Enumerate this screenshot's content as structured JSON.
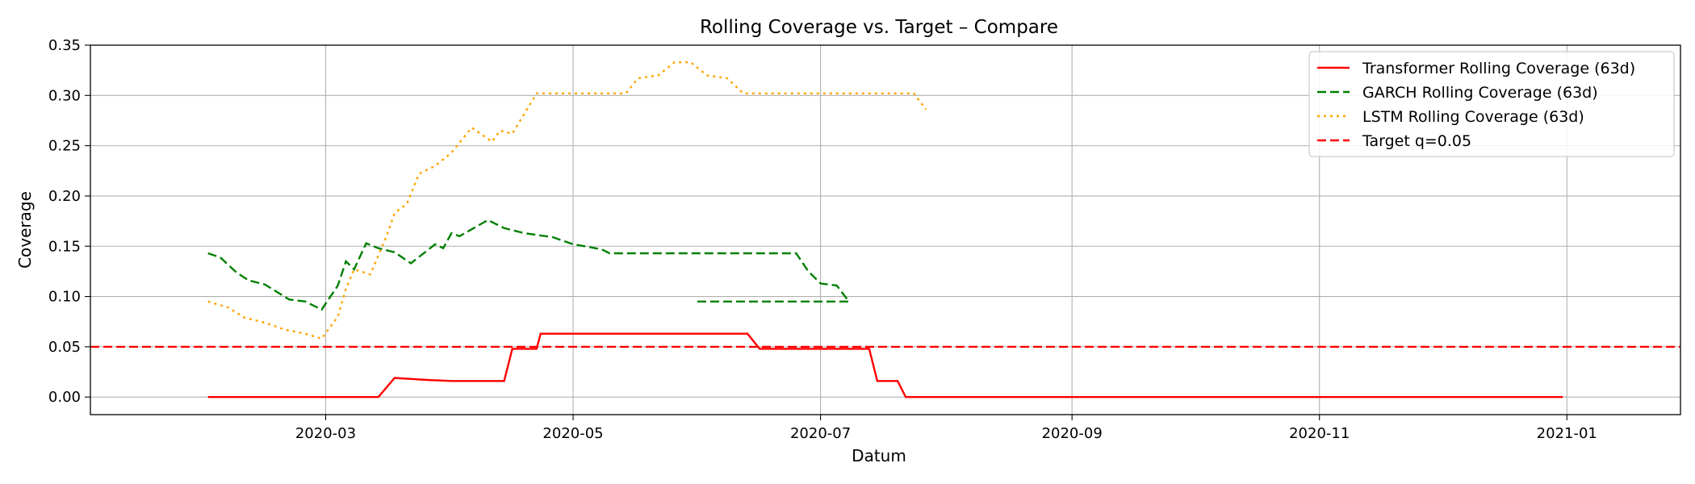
{
  "chart_data": {
    "type": "line",
    "title": "Rolling Coverage vs. Target – Compare",
    "xlabel": "Datum",
    "ylabel": "Coverage",
    "x_range": [
      "2020-01-03",
      "2021-01-29"
    ],
    "ylim": [
      -0.0175,
      0.35
    ],
    "x_ticks": [
      {
        "date": "2020-03-01",
        "label": "2020-03"
      },
      {
        "date": "2020-05-01",
        "label": "2020-05"
      },
      {
        "date": "2020-07-01",
        "label": "2020-07"
      },
      {
        "date": "2020-09-01",
        "label": "2020-09"
      },
      {
        "date": "2020-11-01",
        "label": "2020-11"
      },
      {
        "date": "2021-01-01",
        "label": "2021-01"
      }
    ],
    "y_ticks": [
      0.0,
      0.05,
      0.1,
      0.15,
      0.2,
      0.25,
      0.3,
      0.35
    ],
    "y_tick_labels": [
      "0.00",
      "0.05",
      "0.10",
      "0.15",
      "0.20",
      "0.25",
      "0.30",
      "0.35"
    ],
    "grid": true,
    "legend_position": "top-right",
    "series": [
      {
        "name": "Transformer Rolling Coverage (63d)",
        "color": "#ff0000",
        "dash": "solid",
        "points": [
          [
            "2020-02-01",
            0.0
          ],
          [
            "2020-03-14",
            0.0
          ],
          [
            "2020-03-18",
            0.019
          ],
          [
            "2020-03-26",
            0.017
          ],
          [
            "2020-04-01",
            0.016
          ],
          [
            "2020-04-14",
            0.016
          ],
          [
            "2020-04-16",
            0.048
          ],
          [
            "2020-04-22",
            0.048
          ],
          [
            "2020-04-23",
            0.063
          ],
          [
            "2020-06-13",
            0.063
          ],
          [
            "2020-06-16",
            0.048
          ],
          [
            "2020-07-13",
            0.048
          ],
          [
            "2020-07-15",
            0.016
          ],
          [
            "2020-07-20",
            0.016
          ],
          [
            "2020-07-22",
            0.0
          ],
          [
            "2020-12-31",
            0.0
          ]
        ]
      },
      {
        "name": "GARCH Rolling Coverage (63d)",
        "color": "#008000",
        "dash": "dashed",
        "points": [
          [
            "2020-02-01",
            0.143
          ],
          [
            "2020-02-04",
            0.139
          ],
          [
            "2020-02-08",
            0.124
          ],
          [
            "2020-02-11",
            0.116
          ],
          [
            "2020-02-15",
            0.112
          ],
          [
            "2020-02-21",
            0.097
          ],
          [
            "2020-02-25",
            0.095
          ],
          [
            "2020-02-29",
            0.087
          ],
          [
            "2020-03-04",
            0.111
          ],
          [
            "2020-03-06",
            0.135
          ],
          [
            "2020-03-08",
            0.127
          ],
          [
            "2020-03-11",
            0.153
          ],
          [
            "2020-03-14",
            0.148
          ],
          [
            "2020-03-18",
            0.144
          ],
          [
            "2020-03-22",
            0.133
          ],
          [
            "2020-03-28",
            0.152
          ],
          [
            "2020-03-30",
            0.148
          ],
          [
            "2020-04-01",
            0.163
          ],
          [
            "2020-04-03",
            0.16
          ],
          [
            "2020-04-10",
            0.176
          ],
          [
            "2020-04-14",
            0.168
          ],
          [
            "2020-04-19",
            0.163
          ],
          [
            "2020-04-26",
            0.159
          ],
          [
            "2020-05-01",
            0.152
          ],
          [
            "2020-05-08",
            0.147
          ],
          [
            "2020-05-10",
            0.143
          ],
          [
            "2020-06-25",
            0.143
          ],
          [
            "2020-06-28",
            0.125
          ],
          [
            "2020-07-01",
            0.113
          ],
          [
            "2020-07-05",
            0.111
          ],
          [
            "2020-07-08",
            0.095
          ],
          [
            "2020-05-31",
            0.095
          ]
        ]
      },
      {
        "name": "LSTM Rolling Coverage (63d)",
        "color": "#ffa500",
        "dash": "dotted",
        "points": [
          [
            "2020-02-01",
            0.095
          ],
          [
            "2020-02-06",
            0.089
          ],
          [
            "2020-02-10",
            0.079
          ],
          [
            "2020-02-15",
            0.074
          ],
          [
            "2020-02-20",
            0.067
          ],
          [
            "2020-02-25",
            0.063
          ],
          [
            "2020-02-29",
            0.058
          ],
          [
            "2020-03-04",
            0.08
          ],
          [
            "2020-03-06",
            0.108
          ],
          [
            "2020-03-08",
            0.127
          ],
          [
            "2020-03-12",
            0.122
          ],
          [
            "2020-03-16",
            0.16
          ],
          [
            "2020-03-18",
            0.183
          ],
          [
            "2020-03-21",
            0.192
          ],
          [
            "2020-03-24",
            0.222
          ],
          [
            "2020-03-28",
            0.23
          ],
          [
            "2020-04-01",
            0.243
          ],
          [
            "2020-04-06",
            0.268
          ],
          [
            "2020-04-11",
            0.254
          ],
          [
            "2020-04-13",
            0.265
          ],
          [
            "2020-04-16",
            0.262
          ],
          [
            "2020-04-22",
            0.302
          ],
          [
            "2020-05-14",
            0.302
          ],
          [
            "2020-05-17",
            0.317
          ],
          [
            "2020-05-22",
            0.32
          ],
          [
            "2020-05-26",
            0.333
          ],
          [
            "2020-05-30",
            0.333
          ],
          [
            "2020-06-03",
            0.32
          ],
          [
            "2020-06-08",
            0.317
          ],
          [
            "2020-06-12",
            0.302
          ],
          [
            "2020-07-24",
            0.302
          ],
          [
            "2020-07-27",
            0.286
          ]
        ]
      },
      {
        "name": "Target q=0.05",
        "color": "#ff0000",
        "dash": "dashed",
        "points": [
          [
            "2020-01-03",
            0.05
          ],
          [
            "2021-01-29",
            0.05
          ]
        ]
      }
    ]
  }
}
